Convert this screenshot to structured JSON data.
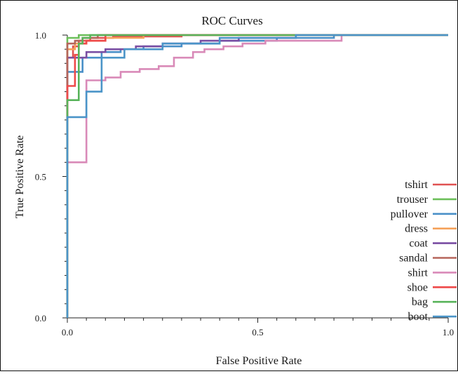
{
  "chart_data": {
    "type": "line",
    "title": "ROC Curves",
    "xlabel": "False Positive Rate",
    "ylabel": "True Positive Rate",
    "xlim": [
      0,
      1
    ],
    "ylim": [
      0,
      1
    ],
    "xticks": [
      0.0,
      0.5,
      1.0
    ],
    "yticks": [
      0.0,
      0.5,
      1.0
    ],
    "xtick_labels": [
      "0.0",
      "0.5",
      "1.0"
    ],
    "ytick_labels": [
      "0.0",
      "0.5",
      "1.0"
    ],
    "minor_ticks": 0.05,
    "grid": false,
    "legend_placement": "bottom-right",
    "series": [
      {
        "name": "tshirt",
        "color": "#e05252",
        "x": [
          0,
          0,
          0.015,
          0.015,
          0.03,
          0.03,
          0.06,
          0.06,
          0.12,
          0.12,
          0.3,
          0.3,
          1
        ],
        "y": [
          0,
          0.92,
          0.92,
          0.96,
          0.96,
          0.98,
          0.98,
          0.99,
          0.99,
          0.995,
          0.995,
          1,
          1
        ]
      },
      {
        "name": "trouser",
        "color": "#6cbf5a",
        "x": [
          0,
          0,
          0.03,
          0.03,
          1
        ],
        "y": [
          0,
          0.99,
          0.99,
          1,
          1
        ]
      },
      {
        "name": "pullover",
        "color": "#4a90c8",
        "x": [
          0,
          0,
          0.04,
          0.04,
          0.09,
          0.09,
          0.14,
          0.14,
          0.2,
          0.2,
          0.3,
          0.3,
          0.4,
          0.4,
          0.55,
          0.55,
          0.7,
          0.7,
          1
        ],
        "y": [
          0,
          0.87,
          0.87,
          0.92,
          0.92,
          0.94,
          0.94,
          0.95,
          0.95,
          0.96,
          0.96,
          0.97,
          0.97,
          0.98,
          0.98,
          0.99,
          0.99,
          1,
          1
        ]
      },
      {
        "name": "dress",
        "color": "#f5a25a",
        "x": [
          0,
          0,
          0.02,
          0.02,
          0.05,
          0.05,
          0.1,
          0.1,
          0.2,
          0.2,
          1
        ],
        "y": [
          0,
          0.95,
          0.95,
          0.97,
          0.97,
          0.98,
          0.98,
          0.99,
          0.99,
          1,
          1
        ]
      },
      {
        "name": "coat",
        "color": "#7a4ea3",
        "x": [
          0,
          0,
          0.05,
          0.05,
          0.1,
          0.1,
          0.18,
          0.18,
          0.25,
          0.25,
          0.35,
          0.35,
          0.45,
          0.45,
          0.6,
          0.6,
          1
        ],
        "y": [
          0,
          0.92,
          0.92,
          0.94,
          0.94,
          0.95,
          0.95,
          0.96,
          0.96,
          0.97,
          0.97,
          0.98,
          0.98,
          0.99,
          0.99,
          1,
          1
        ]
      },
      {
        "name": "sandal",
        "color": "#b5655a",
        "x": [
          0,
          0,
          0.02,
          0.02,
          0.04,
          0.04,
          0.08,
          0.08,
          1
        ],
        "y": [
          0,
          0.97,
          0.97,
          0.98,
          0.98,
          0.99,
          0.99,
          1,
          1
        ]
      },
      {
        "name": "shirt",
        "color": "#d98ab8",
        "x": [
          0,
          0,
          0.05,
          0.05,
          0.1,
          0.1,
          0.14,
          0.14,
          0.19,
          0.19,
          0.24,
          0.24,
          0.28,
          0.28,
          0.33,
          0.33,
          0.36,
          0.36,
          0.41,
          0.41,
          0.46,
          0.46,
          0.52,
          0.52,
          0.72,
          0.72,
          1
        ],
        "y": [
          0,
          0.55,
          0.55,
          0.84,
          0.84,
          0.85,
          0.85,
          0.87,
          0.87,
          0.88,
          0.88,
          0.89,
          0.89,
          0.92,
          0.92,
          0.94,
          0.94,
          0.95,
          0.95,
          0.96,
          0.96,
          0.97,
          0.97,
          0.98,
          0.98,
          1,
          1
        ]
      },
      {
        "name": "shoe",
        "color": "#ee4a4a",
        "x": [
          0,
          0,
          0.02,
          0.02,
          0.03,
          0.03,
          0.05,
          0.05,
          0.1,
          0.1,
          1
        ],
        "y": [
          0,
          0.82,
          0.82,
          0.93,
          0.93,
          0.97,
          0.97,
          0.98,
          0.98,
          1,
          1
        ]
      },
      {
        "name": "bag",
        "color": "#58b35a",
        "x": [
          0,
          0,
          0.03,
          0.03,
          0.04,
          0.04,
          0.06,
          0.06,
          1
        ],
        "y": [
          0,
          0.77,
          0.77,
          0.97,
          0.97,
          0.99,
          0.99,
          1,
          1
        ]
      },
      {
        "name": "boot",
        "color": "#4a94c8",
        "x": [
          0,
          0,
          0.05,
          0.05,
          0.09,
          0.09,
          0.15,
          0.15,
          0.25,
          0.25,
          0.4,
          0.4,
          0.6,
          0.6,
          1
        ],
        "y": [
          0,
          0.71,
          0.71,
          0.8,
          0.8,
          0.92,
          0.92,
          0.95,
          0.95,
          0.97,
          0.97,
          0.99,
          0.99,
          1,
          1
        ]
      }
    ]
  }
}
